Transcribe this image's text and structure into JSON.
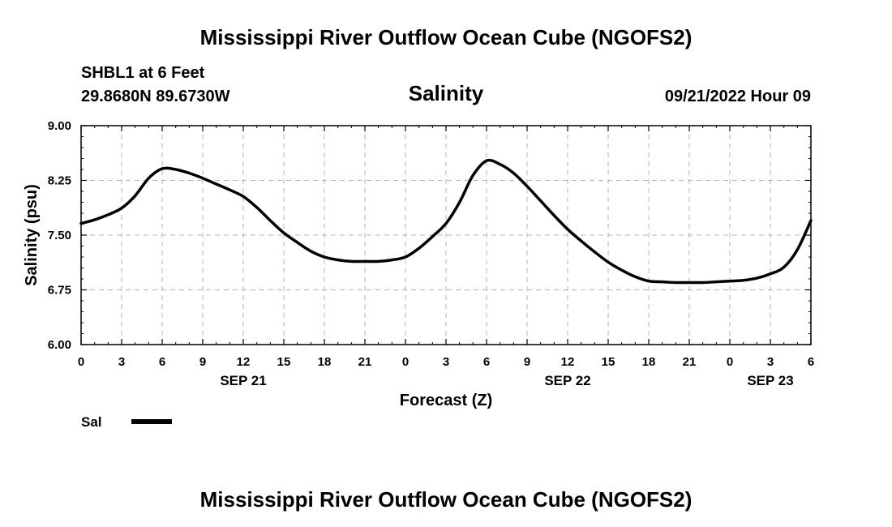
{
  "header": {
    "main_title": "Mississippi River Outflow Ocean Cube (NGOFS2)",
    "station": "SHBL1 at 6 Feet",
    "coords": "29.8680N  89.6730W",
    "datetime": "09/21/2022 Hour 09",
    "footer_title": "Mississippi River Outflow Ocean Cube (NGOFS2)"
  },
  "chart_data": {
    "type": "line",
    "title": "Salinity",
    "xlabel": "Forecast (Z)",
    "ylabel": "Salinity (psu)",
    "xlim": [
      0,
      54
    ],
    "ylim": [
      6.0,
      9.0
    ],
    "grid": true,
    "legend_position": "bottom-left",
    "x_tick_labels": [
      "0",
      "3",
      "6",
      "9",
      "12",
      "15",
      "18",
      "21",
      "0",
      "3",
      "6",
      "9",
      "12",
      "15",
      "18",
      "21",
      "0",
      "3",
      "6"
    ],
    "y_tick_labels": [
      "6.00",
      "6.75",
      "7.50",
      "8.25",
      "9.00"
    ],
    "y_ticks": [
      6.0,
      6.75,
      7.5,
      8.25,
      9.0
    ],
    "date_labels": [
      {
        "label": "SEP 21",
        "hour": 12
      },
      {
        "label": "SEP 22",
        "hour": 36
      },
      {
        "label": "SEP 23",
        "hour": 51
      }
    ],
    "series": [
      {
        "name": "Sal",
        "color": "#000000",
        "x": [
          0,
          1,
          2,
          3,
          4,
          5,
          6,
          7,
          8,
          9,
          10,
          11,
          12,
          13,
          14,
          15,
          16,
          17,
          18,
          19,
          20,
          21,
          22,
          23,
          24,
          25,
          26,
          27,
          28,
          29,
          30,
          31,
          32,
          33,
          34,
          35,
          36,
          37,
          38,
          39,
          40,
          41,
          42,
          43,
          44,
          45,
          46,
          47,
          48,
          49,
          50,
          51,
          52,
          53,
          54
        ],
        "values": [
          7.66,
          7.71,
          7.78,
          7.87,
          8.04,
          8.28,
          8.41,
          8.4,
          8.35,
          8.28,
          8.2,
          8.12,
          8.03,
          7.88,
          7.7,
          7.53,
          7.4,
          7.28,
          7.2,
          7.16,
          7.14,
          7.14,
          7.14,
          7.16,
          7.2,
          7.32,
          7.48,
          7.66,
          7.95,
          8.32,
          8.52,
          8.47,
          8.35,
          8.17,
          7.97,
          7.77,
          7.58,
          7.42,
          7.27,
          7.13,
          7.02,
          6.93,
          6.87,
          6.86,
          6.85,
          6.85,
          6.85,
          6.86,
          6.87,
          6.88,
          6.91,
          6.97,
          7.06,
          7.3,
          7.7
        ]
      }
    ]
  },
  "legend": {
    "label": "Sal"
  }
}
